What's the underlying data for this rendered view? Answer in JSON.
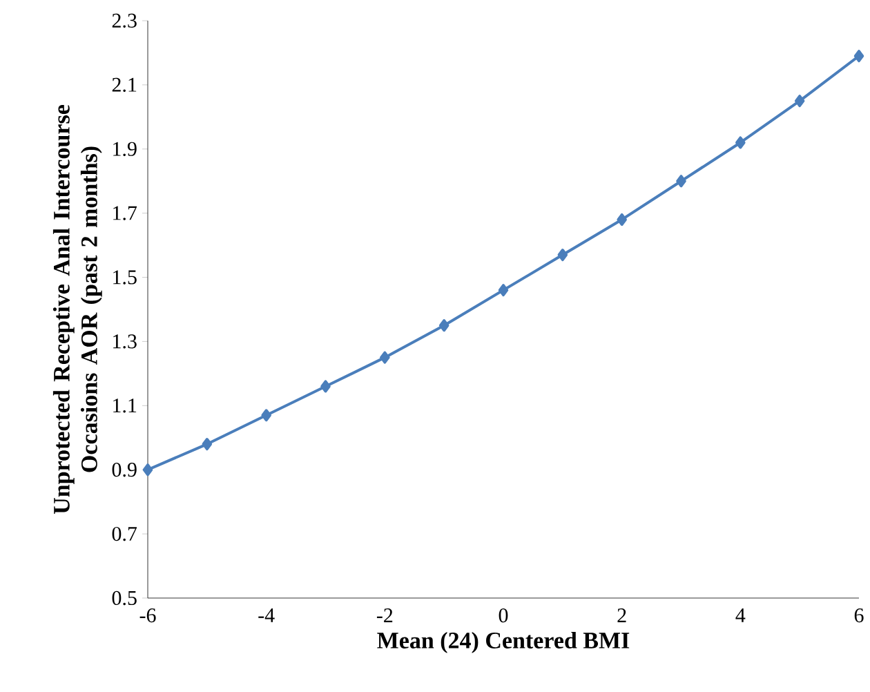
{
  "chart_data": {
    "type": "line",
    "xlabel": "Mean (24) Centered BMI",
    "ylabel": "Unprotected Receptive Anal Intercourse Occasions AOR (past 2 months)",
    "x": [
      -6,
      -5,
      -4,
      -3,
      -2,
      -1,
      0,
      1,
      2,
      3,
      4,
      5,
      6
    ],
    "series": [
      {
        "color": "#4a7ebb",
        "values": [
          0.9,
          0.98,
          1.07,
          1.16,
          1.25,
          1.35,
          1.46,
          1.57,
          1.68,
          1.8,
          1.92,
          2.05,
          2.19
        ]
      }
    ],
    "xlim": [
      -6,
      6
    ],
    "ylim": [
      0.5,
      2.3
    ],
    "xticks": [
      -6,
      -4,
      -2,
      0,
      2,
      4,
      6
    ],
    "yticks": [
      0.5,
      0.7,
      0.9,
      1.1,
      1.3,
      1.5,
      1.7,
      1.9,
      2.1,
      2.3
    ],
    "grid": false,
    "marker": "diamond",
    "line_style": "solid"
  }
}
